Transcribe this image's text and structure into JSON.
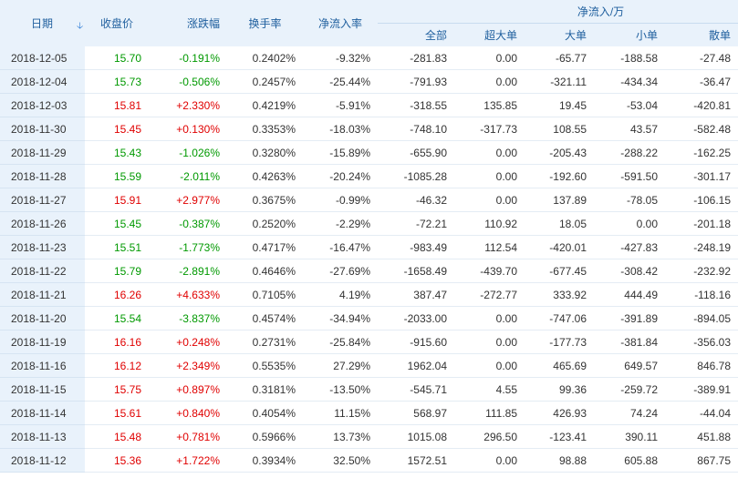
{
  "headers": {
    "date": "日期",
    "close": "收盘价",
    "change": "涨跌幅",
    "turnover": "换手率",
    "net_rate": "净流入率",
    "net_flow_group": "净流入/万",
    "all": "全部",
    "xl": "超大单",
    "large": "大单",
    "small": "小单",
    "retail": "散单"
  },
  "sort_icon": "arrow-down-icon",
  "colors": {
    "up": "#e00000",
    "down": "#009900",
    "header_bg": "#e9f2fb",
    "header_text": "#1f5f9e"
  },
  "rows": [
    {
      "date": "2018-12-05",
      "close": "15.70",
      "change": "-0.191%",
      "dir": "down",
      "turnover": "0.2402%",
      "rate": "-9.32%",
      "all": "-281.83",
      "xl": "0.00",
      "large": "-65.77",
      "small": "-188.58",
      "retail": "-27.48"
    },
    {
      "date": "2018-12-04",
      "close": "15.73",
      "change": "-0.506%",
      "dir": "down",
      "turnover": "0.2457%",
      "rate": "-25.44%",
      "all": "-791.93",
      "xl": "0.00",
      "large": "-321.11",
      "small": "-434.34",
      "retail": "-36.47"
    },
    {
      "date": "2018-12-03",
      "close": "15.81",
      "change": "+2.330%",
      "dir": "up",
      "turnover": "0.4219%",
      "rate": "-5.91%",
      "all": "-318.55",
      "xl": "135.85",
      "large": "19.45",
      "small": "-53.04",
      "retail": "-420.81"
    },
    {
      "date": "2018-11-30",
      "close": "15.45",
      "change": "+0.130%",
      "dir": "up",
      "turnover": "0.3353%",
      "rate": "-18.03%",
      "all": "-748.10",
      "xl": "-317.73",
      "large": "108.55",
      "small": "43.57",
      "retail": "-582.48"
    },
    {
      "date": "2018-11-29",
      "close": "15.43",
      "change": "-1.026%",
      "dir": "down",
      "turnover": "0.3280%",
      "rate": "-15.89%",
      "all": "-655.90",
      "xl": "0.00",
      "large": "-205.43",
      "small": "-288.22",
      "retail": "-162.25"
    },
    {
      "date": "2018-11-28",
      "close": "15.59",
      "change": "-2.011%",
      "dir": "down",
      "turnover": "0.4263%",
      "rate": "-20.24%",
      "all": "-1085.28",
      "xl": "0.00",
      "large": "-192.60",
      "small": "-591.50",
      "retail": "-301.17"
    },
    {
      "date": "2018-11-27",
      "close": "15.91",
      "change": "+2.977%",
      "dir": "up",
      "turnover": "0.3675%",
      "rate": "-0.99%",
      "all": "-46.32",
      "xl": "0.00",
      "large": "137.89",
      "small": "-78.05",
      "retail": "-106.15"
    },
    {
      "date": "2018-11-26",
      "close": "15.45",
      "change": "-0.387%",
      "dir": "down",
      "turnover": "0.2520%",
      "rate": "-2.29%",
      "all": "-72.21",
      "xl": "110.92",
      "large": "18.05",
      "small": "0.00",
      "retail": "-201.18"
    },
    {
      "date": "2018-11-23",
      "close": "15.51",
      "change": "-1.773%",
      "dir": "down",
      "turnover": "0.4717%",
      "rate": "-16.47%",
      "all": "-983.49",
      "xl": "112.54",
      "large": "-420.01",
      "small": "-427.83",
      "retail": "-248.19"
    },
    {
      "date": "2018-11-22",
      "close": "15.79",
      "change": "-2.891%",
      "dir": "down",
      "turnover": "0.4646%",
      "rate": "-27.69%",
      "all": "-1658.49",
      "xl": "-439.70",
      "large": "-677.45",
      "small": "-308.42",
      "retail": "-232.92"
    },
    {
      "date": "2018-11-21",
      "close": "16.26",
      "change": "+4.633%",
      "dir": "up",
      "turnover": "0.7105%",
      "rate": "4.19%",
      "all": "387.47",
      "xl": "-272.77",
      "large": "333.92",
      "small": "444.49",
      "retail": "-118.16"
    },
    {
      "date": "2018-11-20",
      "close": "15.54",
      "change": "-3.837%",
      "dir": "down",
      "turnover": "0.4574%",
      "rate": "-34.94%",
      "all": "-2033.00",
      "xl": "0.00",
      "large": "-747.06",
      "small": "-391.89",
      "retail": "-894.05"
    },
    {
      "date": "2018-11-19",
      "close": "16.16",
      "change": "+0.248%",
      "dir": "up",
      "turnover": "0.2731%",
      "rate": "-25.84%",
      "all": "-915.60",
      "xl": "0.00",
      "large": "-177.73",
      "small": "-381.84",
      "retail": "-356.03"
    },
    {
      "date": "2018-11-16",
      "close": "16.12",
      "change": "+2.349%",
      "dir": "up",
      "turnover": "0.5535%",
      "rate": "27.29%",
      "all": "1962.04",
      "xl": "0.00",
      "large": "465.69",
      "small": "649.57",
      "retail": "846.78"
    },
    {
      "date": "2018-11-15",
      "close": "15.75",
      "change": "+0.897%",
      "dir": "up",
      "turnover": "0.3181%",
      "rate": "-13.50%",
      "all": "-545.71",
      "xl": "4.55",
      "large": "99.36",
      "small": "-259.72",
      "retail": "-389.91"
    },
    {
      "date": "2018-11-14",
      "close": "15.61",
      "change": "+0.840%",
      "dir": "up",
      "turnover": "0.4054%",
      "rate": "11.15%",
      "all": "568.97",
      "xl": "111.85",
      "large": "426.93",
      "small": "74.24",
      "retail": "-44.04"
    },
    {
      "date": "2018-11-13",
      "close": "15.48",
      "change": "+0.781%",
      "dir": "up",
      "turnover": "0.5966%",
      "rate": "13.73%",
      "all": "1015.08",
      "xl": "296.50",
      "large": "-123.41",
      "small": "390.11",
      "retail": "451.88"
    },
    {
      "date": "2018-11-12",
      "close": "15.36",
      "change": "+1.722%",
      "dir": "up",
      "turnover": "0.3934%",
      "rate": "32.50%",
      "all": "1572.51",
      "xl": "0.00",
      "large": "98.88",
      "small": "605.88",
      "retail": "867.75"
    }
  ]
}
